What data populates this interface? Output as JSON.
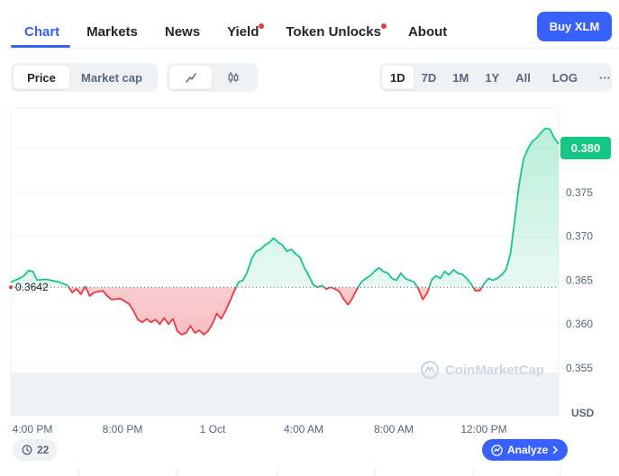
{
  "nav": {
    "tabs": [
      {
        "label": "Chart",
        "active": true,
        "dot": false
      },
      {
        "label": "Markets",
        "active": false,
        "dot": false
      },
      {
        "label": "News",
        "active": false,
        "dot": false
      },
      {
        "label": "Yield",
        "active": false,
        "dot": true
      },
      {
        "label": "Token Unlocks",
        "active": false,
        "dot": true
      },
      {
        "label": "About",
        "active": false,
        "dot": false
      }
    ],
    "buy_label": "Buy XLM"
  },
  "toolbar": {
    "metric": [
      {
        "label": "Price",
        "active": true
      },
      {
        "label": "Market cap",
        "active": false
      }
    ],
    "view": [
      {
        "icon": "line-chart-icon",
        "active": true
      },
      {
        "icon": "candlestick-icon",
        "active": false
      }
    ],
    "ranges": [
      {
        "label": "1D",
        "active": true
      },
      {
        "label": "7D",
        "active": false
      },
      {
        "label": "1M",
        "active": false
      },
      {
        "label": "1Y",
        "active": false
      },
      {
        "label": "All",
        "active": false
      },
      {
        "label": "LOG",
        "active": false
      }
    ],
    "more_label": "···"
  },
  "chart": {
    "current_price": "0.380",
    "reference_price": "0.3642",
    "watermark": "CoinMarketCap",
    "comments_count": "22",
    "analyze_label": "Analyze",
    "currency": "USD"
  },
  "chart_data": {
    "type": "area",
    "reference": 0.3642,
    "ylim": [
      0.352,
      0.385
    ],
    "yticks": [
      0.355,
      0.36,
      0.365,
      0.37,
      0.375,
      0.38
    ],
    "ytick_labels": [
      "0.355",
      "0.360",
      "0.365",
      "0.370",
      "0.375",
      "0.380"
    ],
    "xticks": [
      "4:00 PM",
      "8:00 PM",
      "1 Oct",
      "4:00 AM",
      "8:00 AM",
      "12:00 PM"
    ],
    "colors": {
      "up": "#16c784",
      "down": "#ea3943",
      "volume": "#eff2f5"
    },
    "series": [
      {
        "x": 0,
        "y": 0.3648
      },
      {
        "x": 2,
        "y": 0.3652
      },
      {
        "x": 3,
        "y": 0.3655
      },
      {
        "x": 4,
        "y": 0.3661
      },
      {
        "x": 5,
        "y": 0.366
      },
      {
        "x": 6,
        "y": 0.365
      },
      {
        "x": 8,
        "y": 0.3651
      },
      {
        "x": 11,
        "y": 0.3648
      },
      {
        "x": 13,
        "y": 0.3644
      },
      {
        "x": 14,
        "y": 0.3636
      },
      {
        "x": 15,
        "y": 0.364
      },
      {
        "x": 16,
        "y": 0.3634
      },
      {
        "x": 17,
        "y": 0.3643
      },
      {
        "x": 18,
        "y": 0.3632
      },
      {
        "x": 19,
        "y": 0.3636
      },
      {
        "x": 21,
        "y": 0.3638
      },
      {
        "x": 22,
        "y": 0.3632
      },
      {
        "x": 23,
        "y": 0.3628
      },
      {
        "x": 25,
        "y": 0.3629
      },
      {
        "x": 27,
        "y": 0.3623
      },
      {
        "x": 28,
        "y": 0.3615
      },
      {
        "x": 29,
        "y": 0.3605
      },
      {
        "x": 30,
        "y": 0.3602
      },
      {
        "x": 31,
        "y": 0.3606
      },
      {
        "x": 32,
        "y": 0.3602
      },
      {
        "x": 33,
        "y": 0.3605
      },
      {
        "x": 34,
        "y": 0.36
      },
      {
        "x": 35,
        "y": 0.3607
      },
      {
        "x": 36,
        "y": 0.36
      },
      {
        "x": 37,
        "y": 0.3606
      },
      {
        "x": 38,
        "y": 0.3592
      },
      {
        "x": 39,
        "y": 0.3588
      },
      {
        "x": 40,
        "y": 0.359
      },
      {
        "x": 41,
        "y": 0.3598
      },
      {
        "x": 42,
        "y": 0.359
      },
      {
        "x": 43,
        "y": 0.3593
      },
      {
        "x": 44,
        "y": 0.3588
      },
      {
        "x": 45,
        "y": 0.3592
      },
      {
        "x": 46,
        "y": 0.36
      },
      {
        "x": 47,
        "y": 0.3612
      },
      {
        "x": 48,
        "y": 0.3606
      },
      {
        "x": 49,
        "y": 0.3615
      },
      {
        "x": 50,
        "y": 0.3626
      },
      {
        "x": 51,
        "y": 0.3638
      },
      {
        "x": 52,
        "y": 0.3648
      },
      {
        "x": 53,
        "y": 0.365
      },
      {
        "x": 54,
        "y": 0.366
      },
      {
        "x": 55,
        "y": 0.3675
      },
      {
        "x": 56,
        "y": 0.3683
      },
      {
        "x": 57,
        "y": 0.3685
      },
      {
        "x": 58,
        "y": 0.369
      },
      {
        "x": 59,
        "y": 0.3693
      },
      {
        "x": 60,
        "y": 0.3698
      },
      {
        "x": 61,
        "y": 0.3693
      },
      {
        "x": 62,
        "y": 0.369
      },
      {
        "x": 63,
        "y": 0.3683
      },
      {
        "x": 64,
        "y": 0.3685
      },
      {
        "x": 65,
        "y": 0.368
      },
      {
        "x": 66,
        "y": 0.3676
      },
      {
        "x": 67,
        "y": 0.3664
      },
      {
        "x": 68,
        "y": 0.3655
      },
      {
        "x": 69,
        "y": 0.3645
      },
      {
        "x": 70,
        "y": 0.3642
      },
      {
        "x": 71,
        "y": 0.3644
      },
      {
        "x": 72,
        "y": 0.364
      },
      {
        "x": 73,
        "y": 0.3642
      },
      {
        "x": 74,
        "y": 0.364
      },
      {
        "x": 75,
        "y": 0.3637
      },
      {
        "x": 76,
        "y": 0.3628
      },
      {
        "x": 77,
        "y": 0.3622
      },
      {
        "x": 78,
        "y": 0.363
      },
      {
        "x": 79,
        "y": 0.364
      },
      {
        "x": 80,
        "y": 0.3648
      },
      {
        "x": 81,
        "y": 0.3652
      },
      {
        "x": 82,
        "y": 0.3655
      },
      {
        "x": 83,
        "y": 0.366
      },
      {
        "x": 84,
        "y": 0.3664
      },
      {
        "x": 85,
        "y": 0.366
      },
      {
        "x": 86,
        "y": 0.3658
      },
      {
        "x": 87,
        "y": 0.3652
      },
      {
        "x": 88,
        "y": 0.365
      },
      {
        "x": 89,
        "y": 0.3658
      },
      {
        "x": 90,
        "y": 0.3652
      },
      {
        "x": 91,
        "y": 0.365
      },
      {
        "x": 92,
        "y": 0.3648
      },
      {
        "x": 93,
        "y": 0.364
      },
      {
        "x": 94,
        "y": 0.3628
      },
      {
        "x": 95,
        "y": 0.3635
      },
      {
        "x": 96,
        "y": 0.365
      },
      {
        "x": 97,
        "y": 0.3655
      },
      {
        "x": 98,
        "y": 0.3652
      },
      {
        "x": 99,
        "y": 0.366
      },
      {
        "x": 100,
        "y": 0.3656
      },
      {
        "x": 101,
        "y": 0.3662
      },
      {
        "x": 102,
        "y": 0.3658
      },
      {
        "x": 103,
        "y": 0.3657
      },
      {
        "x": 104,
        "y": 0.3652
      },
      {
        "x": 105,
        "y": 0.3646
      },
      {
        "x": 106,
        "y": 0.3638
      },
      {
        "x": 107,
        "y": 0.3638
      },
      {
        "x": 108,
        "y": 0.3646
      },
      {
        "x": 109,
        "y": 0.3652
      },
      {
        "x": 110,
        "y": 0.365
      },
      {
        "x": 111,
        "y": 0.3652
      },
      {
        "x": 112,
        "y": 0.3656
      },
      {
        "x": 113,
        "y": 0.3662
      },
      {
        "x": 114,
        "y": 0.368
      },
      {
        "x": 115,
        "y": 0.372
      },
      {
        "x": 116,
        "y": 0.376
      },
      {
        "x": 117,
        "y": 0.3788
      },
      {
        "x": 118,
        "y": 0.38
      },
      {
        "x": 119,
        "y": 0.3808
      },
      {
        "x": 120,
        "y": 0.3812
      },
      {
        "x": 121,
        "y": 0.3818
      },
      {
        "x": 122,
        "y": 0.3823
      },
      {
        "x": 123,
        "y": 0.3822
      },
      {
        "x": 124,
        "y": 0.3812
      },
      {
        "x": 125,
        "y": 0.3805
      }
    ]
  }
}
